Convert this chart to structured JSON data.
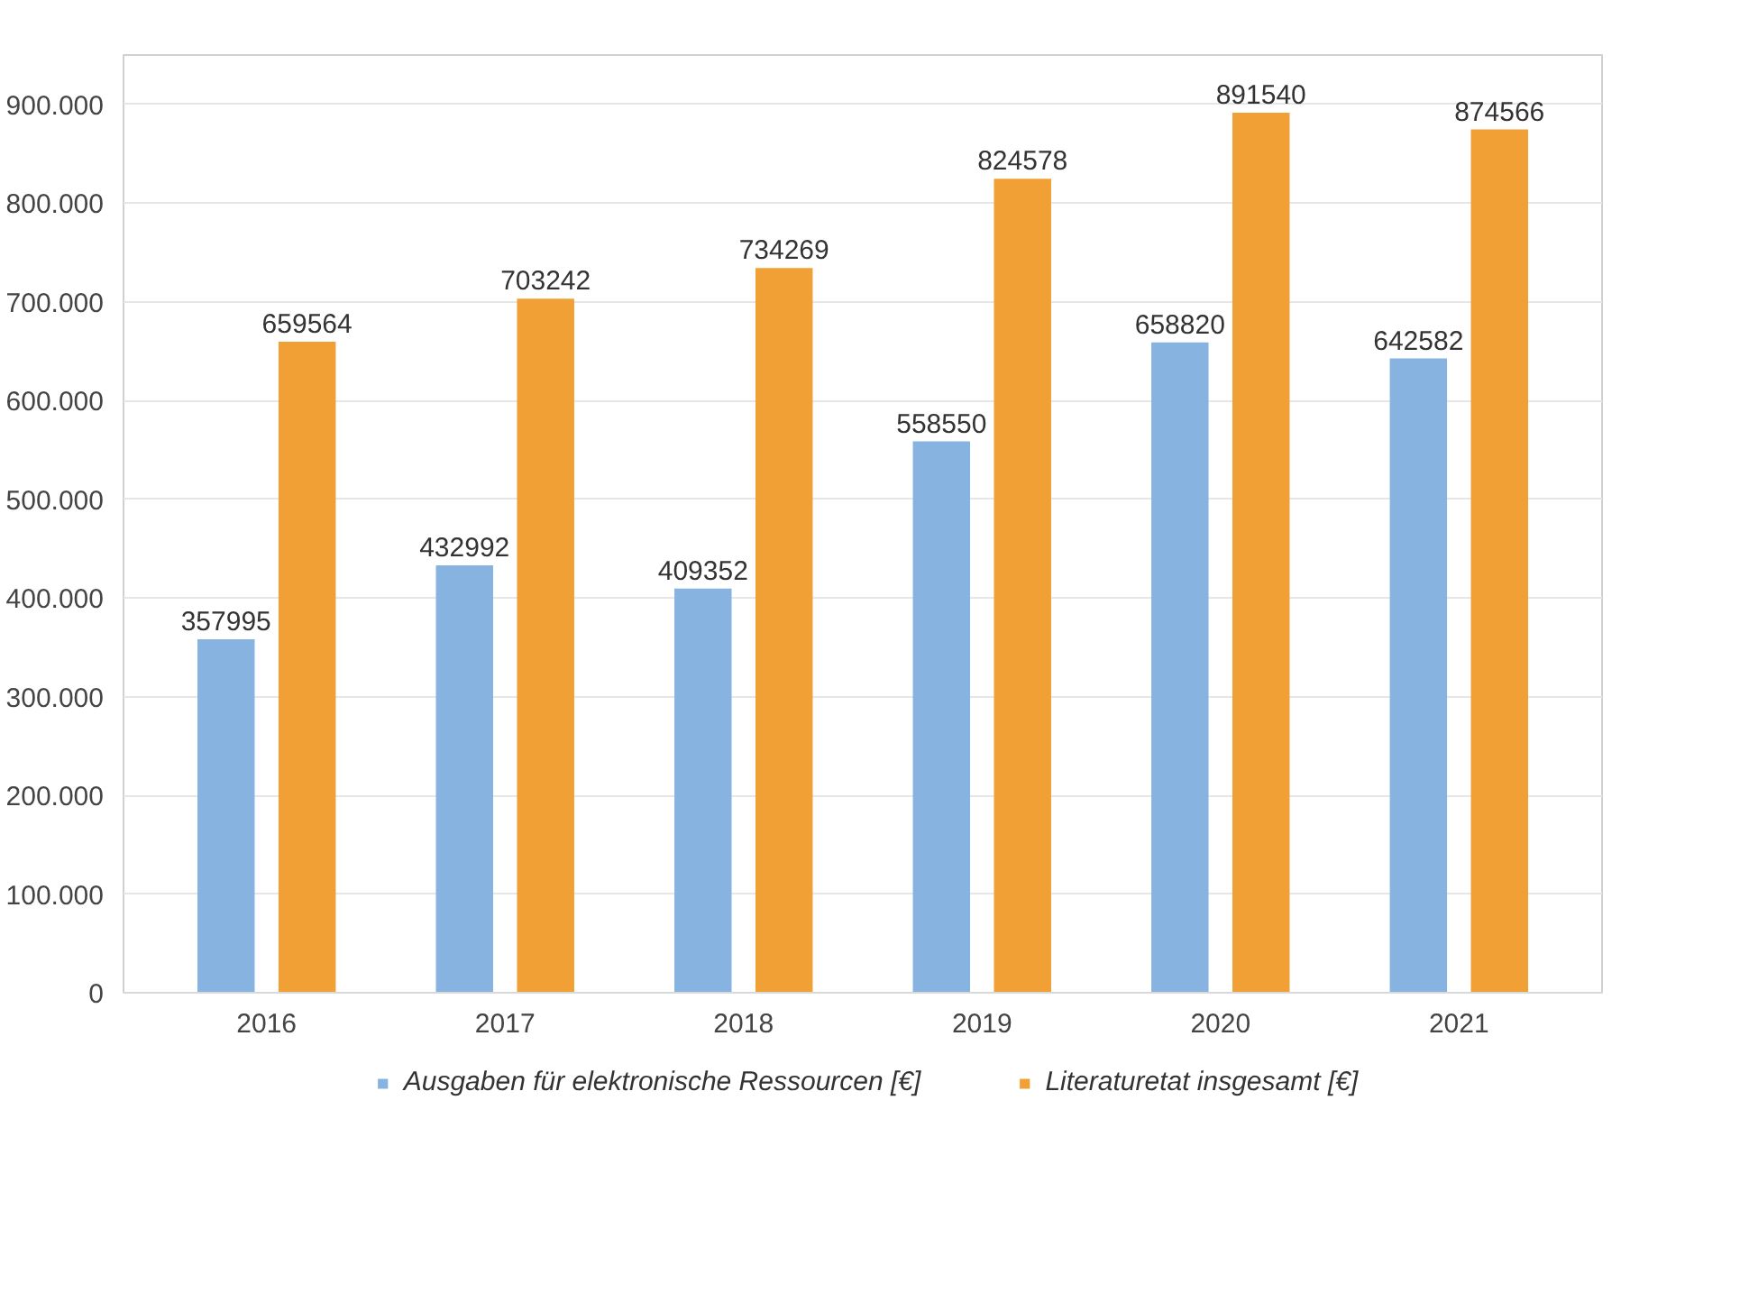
{
  "chart_data": {
    "type": "bar",
    "categories": [
      "2016",
      "2017",
      "2018",
      "2019",
      "2020",
      "2021"
    ],
    "series": [
      {
        "name": "Ausgaben für elektronische Ressourcen [€]",
        "color": "#87b3e0",
        "values": [
          357995,
          432992,
          409352,
          558550,
          658820,
          642582
        ]
      },
      {
        "name": "Literaturetat insgesamt [€]",
        "color": "#f0a035",
        "values": [
          659564,
          703242,
          734269,
          824578,
          891540,
          874566
        ]
      }
    ],
    "ylim": [
      0,
      950000
    ],
    "yticks": [
      0,
      {
        "value": 100000,
        "label": "100.000"
      },
      {
        "value": 200000,
        "label": "200.000"
      },
      {
        "value": 300000,
        "label": "300.000"
      },
      {
        "value": 400000,
        "label": "400.000"
      },
      {
        "value": 500000,
        "label": "500.000"
      },
      {
        "value": 600000,
        "label": "600.000"
      },
      {
        "value": 700000,
        "label": "700.000"
      },
      {
        "value": 800000,
        "label": "800.000"
      },
      {
        "value": 900000,
        "label": "900.000"
      }
    ],
    "grid": "y",
    "legend": "bottom",
    "data_labels": true
  }
}
